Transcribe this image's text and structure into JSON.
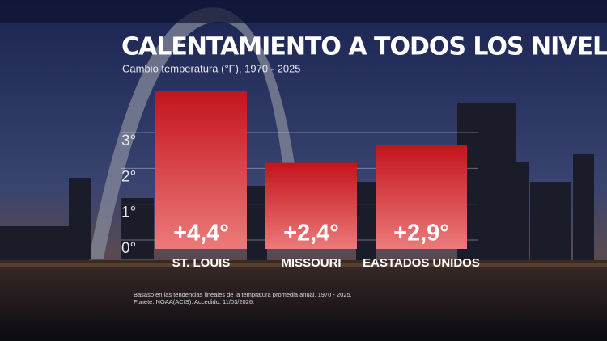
{
  "chart_data": {
    "type": "bar",
    "title": "CALENTAMIENTO A TODOS LOS NIVELES",
    "subtitle": "Cambio temperatura (°F), 1970 - 2025",
    "categories": [
      "ST. LOUIS",
      "MISSOURI",
      "EASTADOS UNIDOS"
    ],
    "values": [
      4.4,
      2.4,
      2.9
    ],
    "value_labels": [
      "+4,4°",
      "+2,4°",
      "+2,9°"
    ],
    "color": "#c3141c",
    "ylim": [
      0,
      4.5
    ],
    "yticks": [
      {
        "value": 0,
        "label": "0°"
      },
      {
        "value": 1,
        "label": "1°"
      },
      {
        "value": 2,
        "label": "2°"
      },
      {
        "value": 3,
        "label": "3°"
      }
    ],
    "grid": true,
    "notes": [
      "Basaso en las tendencias lineales de la tempratura promedia anual, 1970 - 2025.",
      "Funete: NOAA(ACIS). Accedido: 11/03/2026."
    ]
  }
}
